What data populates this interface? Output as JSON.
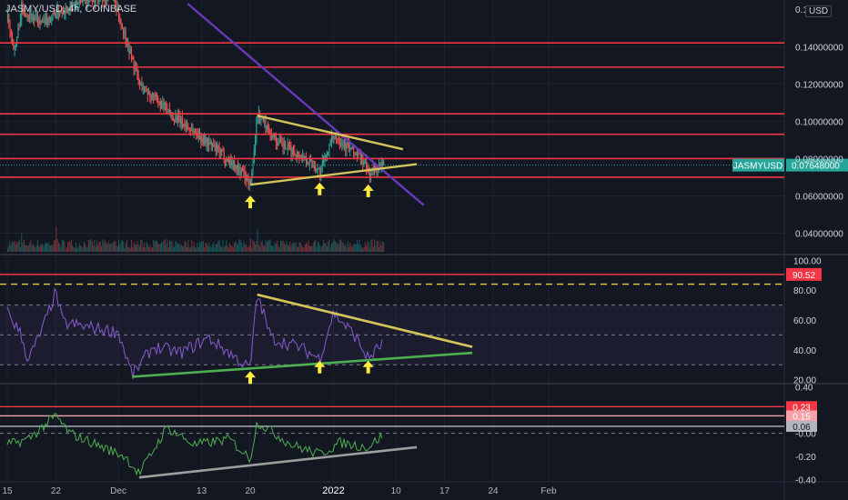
{
  "header": {
    "symbol_title": "JASMY/USD, 4h, COINBASE",
    "currency": "USD"
  },
  "colors": {
    "background": "#131722",
    "grid": "#1e222d",
    "up": "#26a69a",
    "down": "#ef5350",
    "horizontal_level": "#f23645",
    "yellow_trendline": "#d4c35a",
    "purple_trendline": "#673ab7",
    "rsi_line": "#7e57c2",
    "green_trendline": "#4caf50",
    "gray_trendline": "#9e9e9e",
    "arrow": "#ffeb3b",
    "osc_line": "#4caf50",
    "last_price_tag": "#26a69a"
  },
  "chart_data": [
    {
      "type": "candlestick",
      "symbol": "JASMYUSD",
      "exchange": "COINBASE",
      "timeframe": "4h",
      "x_ticks": [
        "15",
        "22",
        "Dec",
        "13",
        "20",
        "2022",
        "10",
        "17",
        "24",
        "Feb"
      ],
      "y_ticks": [
        "0.14000000",
        "0.12000000",
        "0.10000000",
        "0.08000000",
        "0.06000000",
        "0.04000000"
      ],
      "y_top_partial_label": "0.1",
      "ylim": [
        0.03,
        0.165
      ],
      "last_price": {
        "label": "JASMYUSD",
        "value": "0.07648000"
      },
      "horizontal_levels": [
        0.142,
        0.129,
        0.104,
        0.093,
        0.08,
        0.07
      ],
      "path_keypoints": [
        {
          "time": "Nov 15",
          "close": 0.155
        },
        {
          "time": "Nov 16",
          "close": 0.138
        },
        {
          "time": "Nov 17",
          "close": 0.16
        },
        {
          "time": "Nov 20",
          "close": 0.152
        },
        {
          "time": "Nov 22",
          "close": 0.158
        },
        {
          "time": "Nov 26",
          "close": 0.165
        },
        {
          "time": "Nov 30",
          "close": 0.168
        },
        {
          "time": "Dec 2",
          "close": 0.145
        },
        {
          "time": "Dec 4",
          "close": 0.12
        },
        {
          "time": "Dec 8",
          "close": 0.105
        },
        {
          "time": "Dec 12",
          "close": 0.094
        },
        {
          "time": "Dec 16",
          "close": 0.082
        },
        {
          "time": "Dec 19",
          "close": 0.072
        },
        {
          "time": "Dec 20",
          "close": 0.066
        },
        {
          "time": "Dec 21",
          "close": 0.104
        },
        {
          "time": "Dec 24",
          "close": 0.088
        },
        {
          "time": "Dec 28",
          "close": 0.08
        },
        {
          "time": "Dec 30",
          "close": 0.073
        },
        {
          "time": "Jan 1",
          "close": 0.093
        },
        {
          "time": "Jan 3",
          "close": 0.086
        },
        {
          "time": "Jan 5",
          "close": 0.08
        },
        {
          "time": "Jan 6",
          "close": 0.072
        },
        {
          "time": "Jan 8",
          "close": 0.0765
        }
      ],
      "trendlines": [
        {
          "name": "descending",
          "color": "purple",
          "from": {
            "time": "Dec 11",
            "price": 0.163
          },
          "to": {
            "time": "Jan 14",
            "price": 0.055
          }
        },
        {
          "name": "triangle-upper",
          "color": "yellow",
          "from": {
            "time": "Dec 21",
            "price": 0.103
          },
          "to": {
            "time": "Jan 11",
            "price": 0.085
          }
        },
        {
          "name": "triangle-lower",
          "color": "yellow",
          "from": {
            "time": "Dec 20",
            "price": 0.066
          },
          "to": {
            "time": "Jan 13",
            "price": 0.077
          }
        }
      ],
      "arrows": [
        "Dec 20",
        "Dec 30",
        "Jan 6"
      ]
    },
    {
      "type": "line",
      "name": "RSI",
      "y_ticks": [
        "100.00",
        "80.00",
        "60.00",
        "40.00",
        "20.00"
      ],
      "ylim": [
        18,
        102
      ],
      "bands": [
        70,
        50,
        30
      ],
      "levels": {
        "red": 90.52,
        "yellow_dashed": 84
      },
      "red_level_label": "90.52",
      "path_keypoints": [
        {
          "time": "Nov 15",
          "value": 66
        },
        {
          "time": "Nov 17",
          "value": 50
        },
        {
          "time": "Nov 18",
          "value": 33
        },
        {
          "time": "Nov 20",
          "value": 53
        },
        {
          "time": "Nov 22",
          "value": 79
        },
        {
          "time": "Nov 23",
          "value": 58
        },
        {
          "time": "Nov 27",
          "value": 55
        },
        {
          "time": "Dec 1",
          "value": 52
        },
        {
          "time": "Dec 3",
          "value": 23
        },
        {
          "time": "Dec 6",
          "value": 42
        },
        {
          "time": "Dec 10",
          "value": 38
        },
        {
          "time": "Dec 14",
          "value": 48
        },
        {
          "time": "Dec 17",
          "value": 38
        },
        {
          "time": "Dec 20",
          "value": 27
        },
        {
          "time": "Dec 21",
          "value": 78
        },
        {
          "time": "Dec 23",
          "value": 48
        },
        {
          "time": "Dec 27",
          "value": 42
        },
        {
          "time": "Dec 30",
          "value": 34
        },
        {
          "time": "Jan 1",
          "value": 65
        },
        {
          "time": "Jan 4",
          "value": 50
        },
        {
          "time": "Jan 6",
          "value": 34
        },
        {
          "time": "Jan 8",
          "value": 44
        }
      ],
      "trendlines": [
        {
          "name": "rsi-upper",
          "color": "yellow",
          "from": {
            "time": "Dec 21",
            "value": 77
          },
          "to": {
            "time": "Jan 21",
            "value": 42
          }
        },
        {
          "name": "rsi-lower",
          "color": "green",
          "from": {
            "time": "Dec 3",
            "value": 22
          },
          "to": {
            "time": "Jan 21",
            "value": 38
          }
        }
      ],
      "arrows": [
        "Dec 20",
        "Dec 30",
        "Jan 6"
      ]
    },
    {
      "type": "line",
      "name": "Oscillator",
      "y_ticks": [
        "0.40",
        "-0.00",
        "-0.20",
        "-0.40"
      ],
      "ylim": [
        -0.41,
        0.42
      ],
      "levels": [
        {
          "value": 0.23,
          "label": "0.23",
          "color": "#f23645"
        },
        {
          "value": 0.15,
          "label": "0.15",
          "color": "#f7a1a8"
        },
        {
          "value": 0.06,
          "label": "0.06",
          "color": "#b2b5be"
        }
      ],
      "path_keypoints": [
        {
          "time": "Nov 15",
          "value": -0.1
        },
        {
          "time": "Nov 18",
          "value": -0.05
        },
        {
          "time": "Nov 22",
          "value": 0.15
        },
        {
          "time": "Nov 24",
          "value": 0.0
        },
        {
          "time": "Nov 28",
          "value": -0.1
        },
        {
          "time": "Dec 2",
          "value": -0.2
        },
        {
          "time": "Dec 4",
          "value": -0.35
        },
        {
          "time": "Dec 8",
          "value": 0.05
        },
        {
          "time": "Dec 12",
          "value": -0.1
        },
        {
          "time": "Dec 17",
          "value": -0.05
        },
        {
          "time": "Dec 20",
          "value": -0.22
        },
        {
          "time": "Dec 21",
          "value": 0.1
        },
        {
          "time": "Dec 26",
          "value": -0.1
        },
        {
          "time": "Dec 30",
          "value": -0.18
        },
        {
          "time": "Jan 2",
          "value": -0.08
        },
        {
          "time": "Jan 6",
          "value": -0.12
        },
        {
          "time": "Jan 8",
          "value": -0.02
        }
      ],
      "trendlines": [
        {
          "name": "osc-lower",
          "color": "gray",
          "from": {
            "time": "Dec 4",
            "value": -0.38
          },
          "to": {
            "time": "Jan 13",
            "value": -0.12
          }
        }
      ]
    }
  ]
}
